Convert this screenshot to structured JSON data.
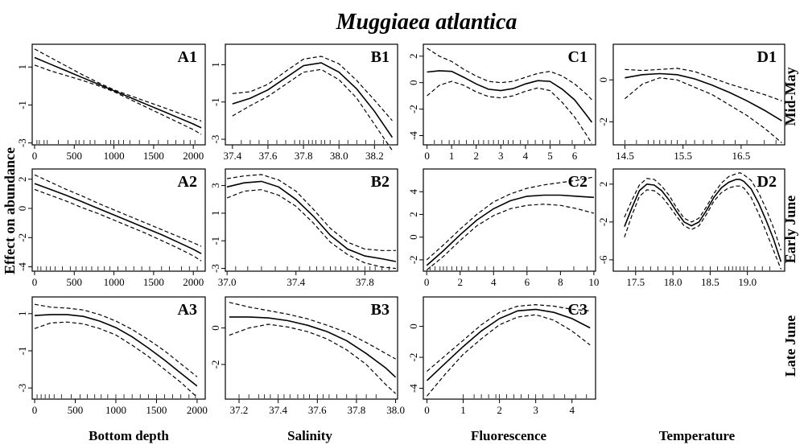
{
  "figure": {
    "title": "Muggiaea atlantica",
    "ylabel": "Effect on abundance",
    "rows": [
      "Mid-May",
      "Early June",
      "Late June"
    ],
    "columns": [
      "Bottom depth",
      "Salinity",
      "Fluorescence",
      "Temperature"
    ]
  },
  "chart_data": [
    {
      "label": "A1",
      "type": "line",
      "row": 0,
      "col": 0,
      "xlim": [
        -30,
        2150
      ],
      "ylim": [
        -3.1,
        2.2
      ],
      "xticks": [
        0,
        500,
        1000,
        1500,
        2000
      ],
      "yticks": [
        1,
        -1,
        -3
      ],
      "x": [
        0,
        200,
        400,
        600,
        800,
        1000,
        1200,
        1400,
        1600,
        1800,
        2000,
        2100
      ],
      "fit": [
        1.5,
        1.15,
        0.8,
        0.45,
        0.1,
        -0.25,
        -0.6,
        -0.95,
        -1.3,
        -1.65,
        -2.0,
        -2.2
      ],
      "upper": [
        1.95,
        1.5,
        1.05,
        0.6,
        0.18,
        -0.2,
        -0.5,
        -0.8,
        -1.1,
        -1.4,
        -1.7,
        -1.85
      ],
      "lower": [
        1.1,
        0.8,
        0.55,
        0.3,
        0.02,
        -0.3,
        -0.7,
        -1.1,
        -1.5,
        -1.9,
        -2.3,
        -2.55
      ],
      "rug": [
        30,
        60,
        120,
        160,
        300,
        420,
        520,
        560,
        620,
        700,
        760,
        900,
        960,
        1000,
        1060,
        1120,
        1200,
        1320,
        1440,
        1560,
        1680,
        1780,
        1880,
        1960,
        2020
      ]
    },
    {
      "label": "B1",
      "type": "line",
      "row": 0,
      "col": 1,
      "xlim": [
        37.36,
        38.33
      ],
      "ylim": [
        -3.3,
        2.1
      ],
      "xticks": [
        37.4,
        37.6,
        37.8,
        38.0,
        38.2
      ],
      "yticks": [
        1,
        -1,
        -3
      ],
      "x": [
        37.4,
        37.5,
        37.6,
        37.7,
        37.8,
        37.9,
        38.0,
        38.1,
        38.2,
        38.3
      ],
      "fit": [
        -1.1,
        -0.8,
        -0.35,
        0.3,
        0.95,
        1.1,
        0.6,
        -0.3,
        -1.5,
        -2.9
      ],
      "upper": [
        -0.55,
        -0.45,
        -0.05,
        0.65,
        1.3,
        1.45,
        1.05,
        0.15,
        -0.9,
        -2.0
      ],
      "lower": [
        -1.75,
        -1.2,
        -0.7,
        -0.05,
        0.6,
        0.75,
        0.2,
        -0.8,
        -2.2,
        -3.6
      ],
      "rug": [
        37.45,
        37.5,
        37.55,
        37.6,
        37.65,
        37.7,
        37.75,
        37.78,
        37.8,
        37.83,
        37.85,
        37.87,
        37.9,
        37.92,
        37.95,
        38.0,
        38.05,
        38.1,
        38.15,
        38.2,
        38.25
      ]
    },
    {
      "label": "C1",
      "type": "line",
      "row": 0,
      "col": 2,
      "xlim": [
        -0.15,
        6.85
      ],
      "ylim": [
        -4.7,
        2.9
      ],
      "xticks": [
        0,
        1,
        2,
        3,
        4,
        5,
        6
      ],
      "yticks": [
        2,
        0,
        -2,
        -4
      ],
      "x": [
        0,
        0.5,
        1,
        1.5,
        2,
        2.5,
        3,
        3.5,
        4,
        4.5,
        5,
        5.5,
        6,
        6.5,
        6.7
      ],
      "fit": [
        0.8,
        0.9,
        0.85,
        0.4,
        -0.1,
        -0.5,
        -0.6,
        -0.45,
        -0.1,
        0.15,
        0.1,
        -0.5,
        -1.3,
        -2.5,
        -3.0
      ],
      "upper": [
        2.6,
        2.0,
        1.6,
        1.0,
        0.5,
        0.1,
        0.0,
        0.1,
        0.4,
        0.7,
        0.85,
        0.5,
        -0.1,
        -0.9,
        -1.3
      ],
      "lower": [
        -1.0,
        -0.2,
        0.1,
        -0.2,
        -0.7,
        -1.05,
        -1.15,
        -1.0,
        -0.65,
        -0.4,
        -0.6,
        -1.5,
        -2.6,
        -4.0,
        -4.6
      ],
      "rug": [
        0.3,
        0.6,
        0.9,
        1.1,
        1.3,
        1.6,
        1.9,
        2.1,
        2.3,
        2.5,
        2.7,
        2.9,
        3.1,
        3.3,
        3.5,
        3.8,
        4.1,
        4.4,
        4.7,
        5.0,
        5.4,
        5.9,
        6.4
      ]
    },
    {
      "label": "D1",
      "type": "line",
      "row": 0,
      "col": 3,
      "xlim": [
        14.3,
        17.25
      ],
      "ylim": [
        -3.1,
        1.7
      ],
      "xticks": [
        14.5,
        15.5,
        16.5
      ],
      "yticks": [
        0,
        -2
      ],
      "x": [
        14.5,
        14.8,
        15.1,
        15.4,
        15.7,
        16.0,
        16.3,
        16.6,
        16.9,
        17.2
      ],
      "fit": [
        0.1,
        0.25,
        0.3,
        0.25,
        0.05,
        -0.25,
        -0.6,
        -1.0,
        -1.45,
        -1.95
      ],
      "upper": [
        0.5,
        0.45,
        0.5,
        0.55,
        0.4,
        0.1,
        -0.2,
        -0.45,
        -0.7,
        -1.0
      ],
      "lower": [
        -0.9,
        -0.2,
        0.1,
        0.0,
        -0.35,
        -0.7,
        -1.2,
        -1.7,
        -2.3,
        -3.0
      ],
      "rug": [
        14.5,
        14.7,
        14.9,
        15.0,
        15.1,
        15.2,
        15.3,
        15.4,
        15.55,
        15.7,
        15.85,
        16.0,
        16.2,
        16.4,
        16.6,
        16.9,
        17.1
      ]
    },
    {
      "label": "A2",
      "type": "line",
      "row": 1,
      "col": 0,
      "xlim": [
        -30,
        2150
      ],
      "ylim": [
        -4.3,
        2.7
      ],
      "xticks": [
        0,
        500,
        1000,
        1500,
        2000
      ],
      "yticks": [
        2,
        0,
        -2,
        -4
      ],
      "x": [
        0,
        200,
        400,
        600,
        800,
        1000,
        1200,
        1400,
        1600,
        1800,
        2000,
        2100
      ],
      "fit": [
        1.7,
        1.3,
        0.9,
        0.45,
        0.0,
        -0.45,
        -0.9,
        -1.35,
        -1.8,
        -2.3,
        -2.8,
        -3.1
      ],
      "upper": [
        2.3,
        1.8,
        1.3,
        0.85,
        0.35,
        -0.1,
        -0.55,
        -1.0,
        -1.45,
        -1.9,
        -2.35,
        -2.6
      ],
      "lower": [
        1.3,
        0.9,
        0.5,
        0.05,
        -0.35,
        -0.8,
        -1.25,
        -1.7,
        -2.2,
        -2.7,
        -3.25,
        -3.6
      ],
      "rug": [
        40,
        80,
        150,
        200,
        260,
        350,
        450,
        520,
        600,
        650,
        720,
        800,
        880,
        950,
        1050,
        1150,
        1250,
        1350,
        1450,
        1600,
        1700,
        1850,
        1950,
        2050
      ]
    },
    {
      "label": "B2",
      "type": "line",
      "row": 1,
      "col": 1,
      "xlim": [
        36.99,
        37.99
      ],
      "ylim": [
        -3.2,
        4.2
      ],
      "xticks": [
        37.0,
        37.4,
        37.8
      ],
      "yticks": [
        3,
        1,
        -1,
        -3
      ],
      "x": [
        37.0,
        37.1,
        37.2,
        37.3,
        37.4,
        37.5,
        37.6,
        37.7,
        37.8,
        37.9,
        37.98
      ],
      "fit": [
        2.9,
        3.2,
        3.3,
        2.9,
        2.0,
        0.8,
        -0.6,
        -1.6,
        -2.1,
        -2.3,
        -2.5
      ],
      "upper": [
        3.5,
        3.7,
        3.8,
        3.4,
        2.6,
        1.3,
        -0.1,
        -1.1,
        -1.6,
        -1.7,
        -1.7
      ],
      "lower": [
        2.1,
        2.6,
        2.7,
        2.3,
        1.5,
        0.3,
        -1.1,
        -2.0,
        -2.6,
        -2.9,
        -3.0
      ],
      "rug": [
        37.05,
        37.12,
        37.2,
        37.28,
        37.35,
        37.42,
        37.48,
        37.52,
        37.56,
        37.6,
        37.63,
        37.66,
        37.7,
        37.73,
        37.76,
        37.8,
        37.83,
        37.86,
        37.9,
        37.94
      ]
    },
    {
      "label": "C2",
      "type": "line",
      "row": 1,
      "col": 2,
      "xlim": [
        -0.2,
        10.1
      ],
      "ylim": [
        -3.0,
        6.0
      ],
      "xticks": [
        0,
        2,
        4,
        6,
        8,
        10
      ],
      "yticks": [
        4,
        2,
        0,
        -2
      ],
      "x": [
        0,
        1,
        2,
        3,
        4,
        5,
        6,
        7,
        8,
        9,
        10
      ],
      "fit": [
        -2.5,
        -1.2,
        0.2,
        1.5,
        2.5,
        3.2,
        3.6,
        3.7,
        3.7,
        3.6,
        3.5
      ],
      "upper": [
        -2.0,
        -0.7,
        0.7,
        2.0,
        3.1,
        3.8,
        4.3,
        4.6,
        4.8,
        5.0,
        5.3
      ],
      "lower": [
        -2.9,
        -1.7,
        -0.3,
        1.0,
        1.9,
        2.5,
        2.8,
        2.9,
        2.8,
        2.5,
        2.1
      ],
      "rug": [
        0.2,
        0.5,
        0.8,
        1.0,
        1.2,
        1.5,
        1.8,
        2.1,
        2.5,
        3.0,
        3.5,
        4.0,
        4.6,
        5.2,
        6.0,
        7.2,
        8.8,
        9.6
      ]
    },
    {
      "label": "D2",
      "type": "line",
      "row": 1,
      "col": 3,
      "xlim": [
        17.2,
        19.5
      ],
      "ylim": [
        -7.2,
        3.6
      ],
      "xticks": [
        17.5,
        18.0,
        18.5,
        19.0
      ],
      "yticks": [
        2,
        -2,
        -6
      ],
      "x": [
        17.35,
        17.45,
        17.55,
        17.65,
        17.75,
        17.85,
        17.95,
        18.05,
        18.15,
        18.25,
        18.35,
        18.45,
        18.55,
        18.65,
        18.75,
        18.85,
        18.9,
        18.95,
        19.05,
        19.15,
        19.25,
        19.35,
        19.45
      ],
      "fit": [
        -2.5,
        -0.5,
        1.3,
        2.0,
        1.9,
        1.3,
        0.3,
        -0.9,
        -2.0,
        -2.4,
        -2.0,
        -0.8,
        0.6,
        1.6,
        2.2,
        2.5,
        2.5,
        2.3,
        1.5,
        0.0,
        -1.8,
        -3.8,
        -6.2
      ],
      "upper": [
        -1.5,
        0.3,
        1.9,
        2.6,
        2.5,
        1.8,
        0.8,
        -0.5,
        -1.6,
        -2.0,
        -1.6,
        -0.4,
        1.0,
        2.1,
        2.8,
        3.1,
        3.2,
        3.0,
        2.4,
        1.1,
        -0.6,
        -2.6,
        -5.0
      ],
      "lower": [
        -3.6,
        -1.3,
        0.7,
        1.4,
        1.3,
        0.7,
        -0.3,
        -1.4,
        -2.4,
        -2.8,
        -2.4,
        -1.2,
        0.2,
        1.1,
        1.6,
        1.8,
        1.8,
        1.6,
        0.6,
        -1.1,
        -3.0,
        -5.0,
        -7.0
      ],
      "rug": [
        17.4,
        17.5,
        17.6,
        17.7,
        17.8,
        17.9,
        18.0,
        18.1,
        18.2,
        18.3,
        18.4,
        18.5,
        18.6,
        18.7,
        18.75,
        18.8,
        18.85,
        18.9,
        18.95,
        19.0,
        19.1,
        19.2,
        19.3
      ]
    },
    {
      "label": "A3",
      "type": "line",
      "row": 2,
      "col": 0,
      "xlim": [
        -30,
        2100
      ],
      "ylim": [
        -3.6,
        1.9
      ],
      "xticks": [
        0,
        500,
        1000,
        1500,
        2000
      ],
      "yticks": [
        1,
        -1,
        -3
      ],
      "x": [
        0,
        200,
        400,
        600,
        800,
        1000,
        1200,
        1400,
        1600,
        1800,
        2000
      ],
      "fit": [
        0.9,
        0.95,
        0.95,
        0.85,
        0.6,
        0.25,
        -0.25,
        -0.85,
        -1.5,
        -2.2,
        -2.9
      ],
      "upper": [
        1.5,
        1.35,
        1.3,
        1.2,
        0.95,
        0.6,
        0.15,
        -0.4,
        -1.0,
        -1.7,
        -2.4
      ],
      "lower": [
        0.2,
        0.5,
        0.55,
        0.45,
        0.2,
        -0.15,
        -0.7,
        -1.3,
        -2.0,
        -2.7,
        -3.5
      ],
      "rug": [
        30,
        80,
        130,
        180,
        240,
        330,
        450,
        560,
        650,
        740,
        820,
        900,
        1000,
        1100,
        1200,
        1300,
        1400,
        1500,
        1600,
        1700,
        1800,
        1900,
        1980
      ]
    },
    {
      "label": "B3",
      "type": "line",
      "row": 2,
      "col": 1,
      "xlim": [
        37.13,
        38.01
      ],
      "ylim": [
        -3.9,
        1.7
      ],
      "xticks": [
        37.2,
        37.4,
        37.6,
        37.8,
        38.0
      ],
      "yticks": [
        0,
        -2
      ],
      "x": [
        37.15,
        37.25,
        37.35,
        37.45,
        37.55,
        37.65,
        37.75,
        37.85,
        37.95,
        38.0
      ],
      "fit": [
        0.6,
        0.6,
        0.55,
        0.4,
        0.15,
        -0.2,
        -0.7,
        -1.4,
        -2.2,
        -2.7
      ],
      "upper": [
        1.4,
        1.15,
        0.95,
        0.75,
        0.5,
        0.15,
        -0.25,
        -0.8,
        -1.4,
        -1.7
      ],
      "lower": [
        -0.4,
        0.0,
        0.2,
        0.05,
        -0.2,
        -0.6,
        -1.2,
        -2.0,
        -3.1,
        -3.6
      ],
      "rug": [
        37.2,
        37.25,
        37.3,
        37.33,
        37.36,
        37.4,
        37.43,
        37.46,
        37.5,
        37.53,
        37.56,
        37.6,
        37.63,
        37.66,
        37.7,
        37.75,
        37.8,
        37.85,
        37.9
      ]
    },
    {
      "label": "C3",
      "type": "line",
      "row": 2,
      "col": 2,
      "xlim": [
        -0.1,
        4.65
      ],
      "ylim": [
        -4.7,
        1.9
      ],
      "xticks": [
        0,
        1,
        2,
        3,
        4
      ],
      "yticks": [
        0,
        -2,
        -4
      ],
      "x": [
        0,
        0.5,
        1,
        1.5,
        2,
        2.5,
        3,
        3.5,
        4,
        4.5
      ],
      "fit": [
        -3.5,
        -2.4,
        -1.3,
        -0.3,
        0.5,
        1.0,
        1.1,
        0.9,
        0.5,
        -0.1
      ],
      "upper": [
        -2.9,
        -1.9,
        -0.9,
        0.1,
        0.9,
        1.3,
        1.4,
        1.3,
        1.1,
        1.0
      ],
      "lower": [
        -4.5,
        -3.1,
        -1.8,
        -0.8,
        0.1,
        0.6,
        0.75,
        0.4,
        -0.3,
        -1.2
      ],
      "rug": [
        1.0,
        1.3,
        1.5,
        1.7,
        1.9,
        2.0,
        2.2,
        2.4,
        2.6,
        2.8,
        3.0,
        3.2,
        3.5,
        3.8,
        4.1,
        4.4
      ]
    }
  ]
}
